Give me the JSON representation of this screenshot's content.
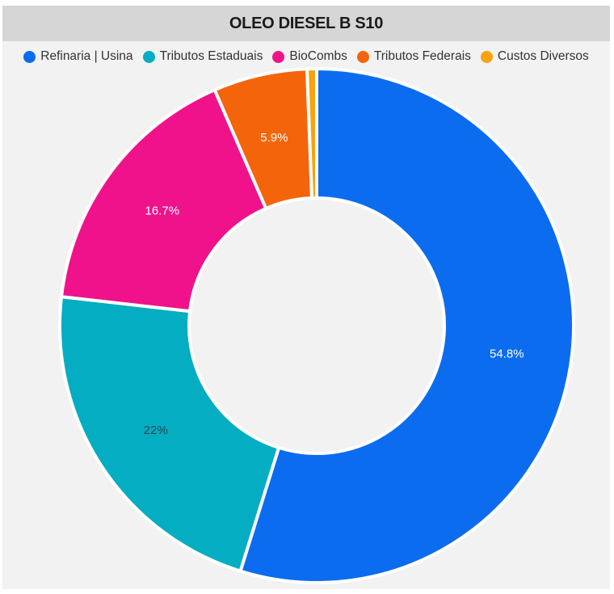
{
  "chart_data": {
    "type": "pie",
    "title": "OLEO DIESEL B S10",
    "legend_position": "top",
    "categories": [
      "Refinaria | Usina",
      "Tributos Estaduais",
      "BioCombs",
      "Tributos Federais",
      "Custos Diversos"
    ],
    "values": [
      54.8,
      22.0,
      16.7,
      5.9,
      0.6
    ],
    "data_labels": [
      "54.8%",
      "22%",
      "16.7%",
      "5.9%",
      ""
    ],
    "colors": [
      "#0b6cf0",
      "#04adc2",
      "#f0128b",
      "#f4650b",
      "#f7a20f"
    ],
    "label_colors": [
      "#ffffff",
      "#2b4a50",
      "#ffffff",
      "#ffffff",
      "#ffffff"
    ],
    "donut": true
  }
}
